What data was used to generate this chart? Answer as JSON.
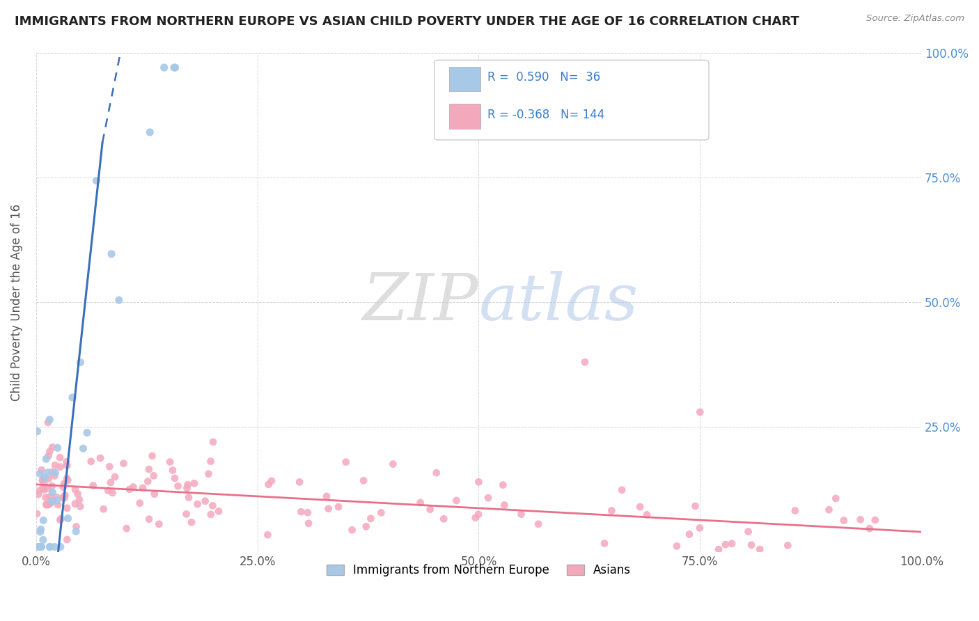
{
  "title": "IMMIGRANTS FROM NORTHERN EUROPE VS ASIAN CHILD POVERTY UNDER THE AGE OF 16 CORRELATION CHART",
  "source": "Source: ZipAtlas.com",
  "ylabel": "Child Poverty Under the Age of 16",
  "watermark_zip": "ZIP",
  "watermark_atlas": "atlas",
  "legend_blue_r": " 0.590",
  "legend_blue_n": " 36",
  "legend_pink_r": "-0.368",
  "legend_pink_n": "144",
  "blue_color": "#a8c8e8",
  "pink_color": "#f4a8bc",
  "blue_line_color": "#3a6fba",
  "pink_line_color": "#e8708a",
  "background_color": "#ffffff",
  "grid_color": "#cccccc",
  "ytick_color": "#4a8fd4",
  "xlim": [
    0.0,
    1.0
  ],
  "ylim": [
    0.0,
    1.0
  ],
  "yticks": [
    0.0,
    0.25,
    0.5,
    0.75,
    1.0
  ],
  "ytick_labels": [
    "",
    "25.0%",
    "50.0%",
    "75.0%",
    "100.0%"
  ],
  "xticks": [
    0.0,
    0.25,
    0.5,
    0.75,
    1.0
  ],
  "xtick_labels": [
    "0.0%",
    "25.0%",
    "50.0%",
    "75.0%",
    "100.0%"
  ]
}
